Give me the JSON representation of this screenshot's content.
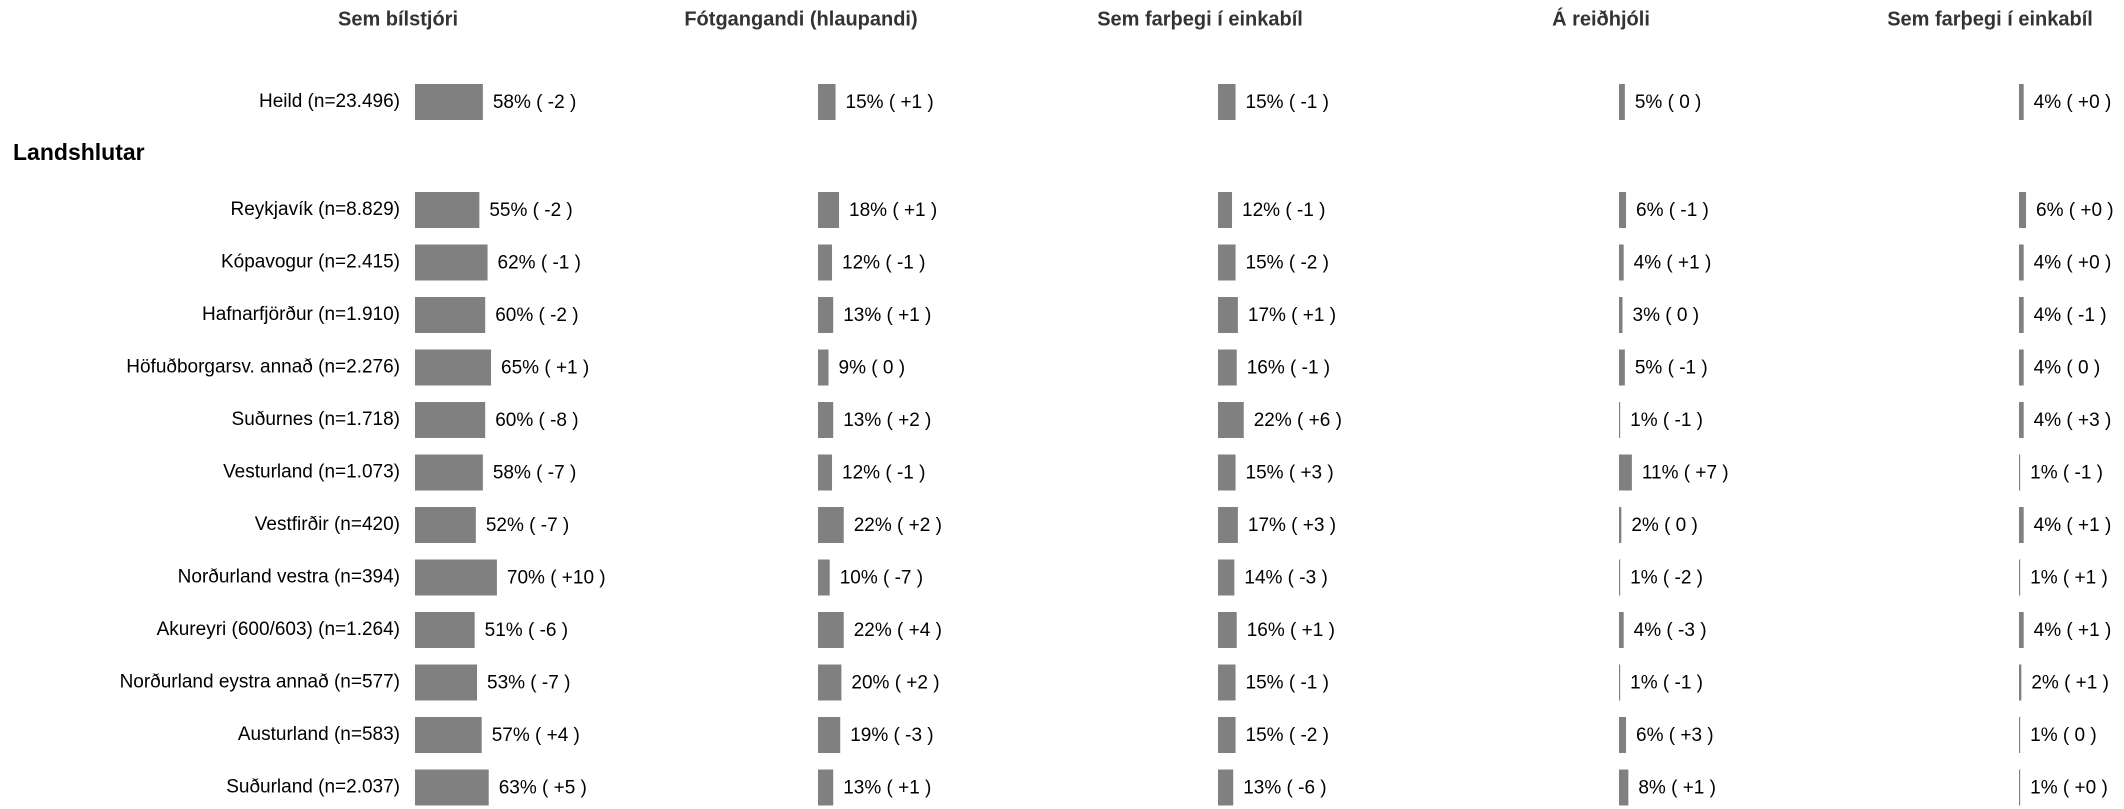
{
  "chart_data": {
    "type": "bar",
    "orientation": "horizontal",
    "xlim": [
      0,
      100
    ],
    "group_label": "Landshlutar",
    "categories": [
      "Heild (n=23.496)",
      "Reykjavík (n=8.829)",
      "Kópavogur (n=2.415)",
      "Hafnarfjörður (n=1.910)",
      "Höfuðborgarsv. annað (n=2.276)",
      "Suðurnes (n=1.718)",
      "Vesturland (n=1.073)",
      "Vestfirðir (n=420)",
      "Norðurland vestra (n=394)",
      "Akureyri (600/603) (n=1.264)",
      "Norðurland eystra annað (n=577)",
      "Austurland (n=583)",
      "Suðurland (n=2.037)"
    ],
    "series": [
      {
        "name": "Sem bílstjóri",
        "color": "#808080",
        "values": [
          58,
          55,
          62,
          60,
          65,
          60,
          58,
          52,
          70,
          51,
          53,
          57,
          63
        ],
        "value_labels": [
          "58% ( -2 )",
          "55% ( -2 )",
          "62% ( -1 )",
          "60% ( -2 )",
          "65% ( +1 )",
          "60% ( -8 )",
          "58% ( -7 )",
          "52% ( -7 )",
          "70% ( +10 )",
          "51% ( -6 )",
          "53% ( -7 )",
          "57% ( +4 )",
          "63% ( +5 )"
        ]
      },
      {
        "name": "Fótgangandi (hlaupandi)",
        "color": "#808080",
        "values": [
          15,
          18,
          12,
          13,
          9,
          13,
          12,
          22,
          10,
          22,
          20,
          19,
          13
        ],
        "value_labels": [
          "15% ( +1 )",
          "18% ( +1 )",
          "12% ( -1 )",
          "13% ( +1 )",
          "9% ( 0 )",
          "13% ( +2 )",
          "12% ( -1 )",
          "22% ( +2 )",
          "10% ( -7 )",
          "22% ( +4 )",
          "20% ( +2 )",
          "19% ( -3 )",
          "13% ( +1 )"
        ]
      },
      {
        "name": "Sem farþegi í einkabíl",
        "color": "#808080",
        "values": [
          15,
          12,
          15,
          17,
          16,
          22,
          15,
          17,
          14,
          16,
          15,
          15,
          13
        ],
        "value_labels": [
          "15% ( -1 )",
          "12% ( -1 )",
          "15% ( -2 )",
          "17% ( +1 )",
          "16% ( -1 )",
          "22% ( +6 )",
          "15% ( +3 )",
          "17% ( +3 )",
          "14% ( -3 )",
          "16% ( +1 )",
          "15% ( -1 )",
          "15% ( -2 )",
          "13% ( -6 )"
        ]
      },
      {
        "name": "Á reiðhjóli",
        "color": "#808080",
        "values": [
          5,
          6,
          4,
          3,
          5,
          1,
          11,
          2,
          1,
          4,
          1,
          6,
          8
        ],
        "value_labels": [
          "5% ( 0 )",
          "6% ( -1 )",
          "4% ( +1 )",
          "3% ( 0 )",
          "5% ( -1 )",
          "1% ( -1 )",
          "11% ( +7 )",
          "2% ( 0 )",
          "1% ( -2 )",
          "4% ( -3 )",
          "1% ( -1 )",
          "6% ( +3 )",
          "8% ( +1 )"
        ]
      },
      {
        "name": "Sem farþegi í einkabíl",
        "color": "#808080",
        "values": [
          4,
          6,
          4,
          4,
          4,
          4,
          1,
          4,
          1,
          4,
          2,
          1,
          1
        ],
        "value_labels": [
          "4% ( +0 )",
          "6% ( +0 )",
          "4% ( +0 )",
          "4% ( -1 )",
          "4% ( 0 )",
          "4% ( +3 )",
          "1% ( -1 )",
          "4% ( +1 )",
          "1% ( +1 )",
          "4% ( +1 )",
          "2% ( +1 )",
          "1% ( 0 )",
          "1% ( +0 )"
        ]
      }
    ]
  }
}
